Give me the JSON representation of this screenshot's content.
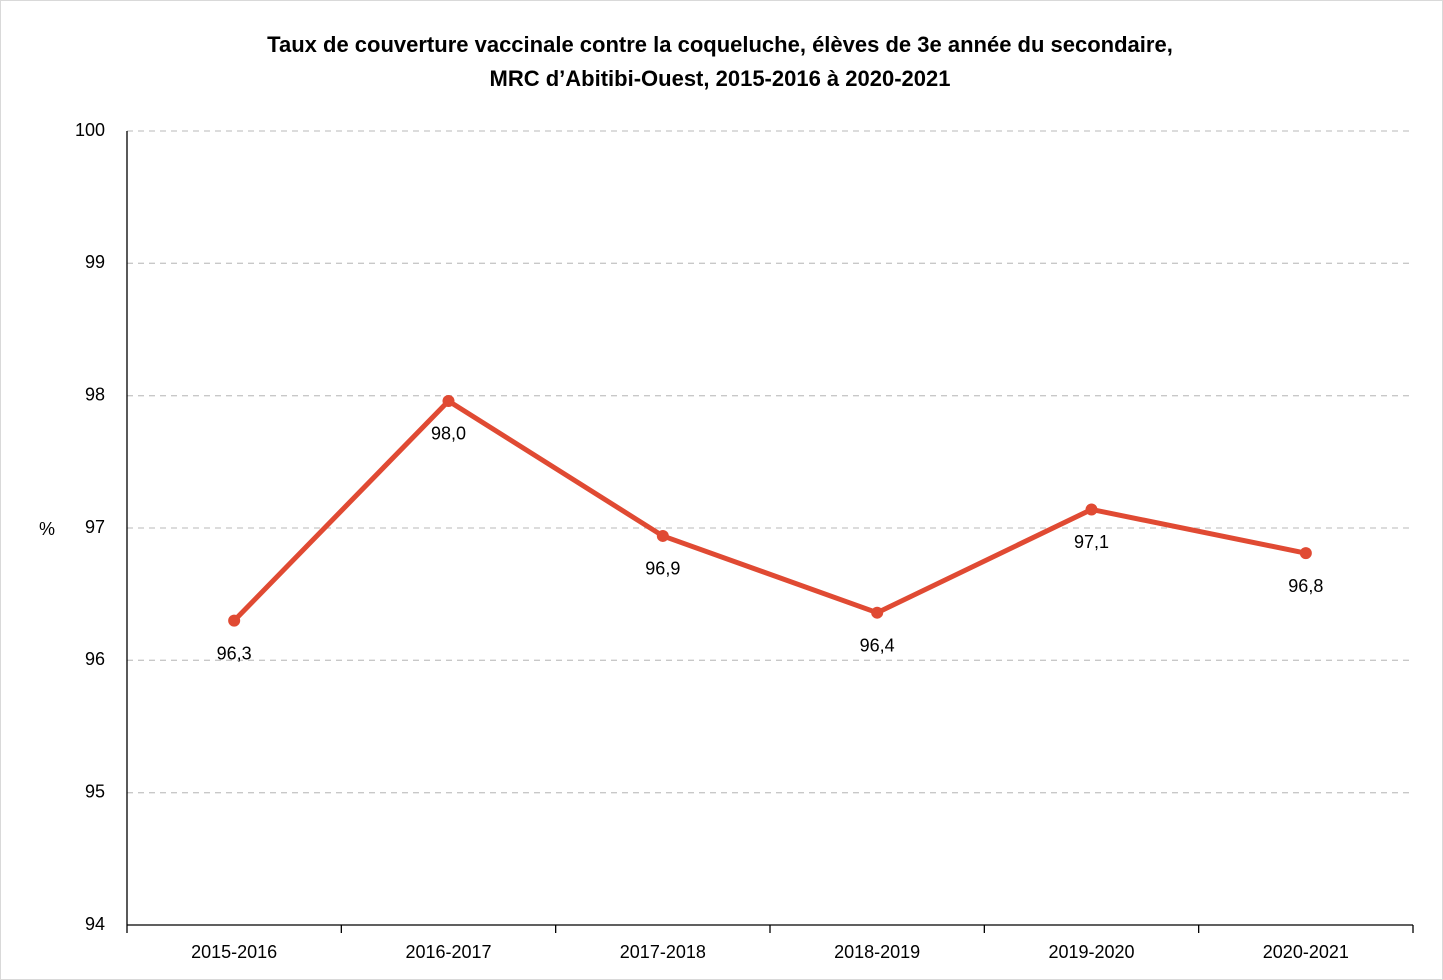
{
  "chart_data": {
    "type": "line",
    "title": [
      "Taux de couverture vaccinale contre la coqueluche, élèves de 3e année du secondaire,",
      "MRC d’Abitibi-Ouest, 2015-2016 à 2020-2021"
    ],
    "y_label": "%",
    "categories": [
      "2015-2016",
      "2016-2017",
      "2017-2018",
      "2018-2019",
      "2019-2020",
      "2020-2021"
    ],
    "series": [
      {
        "name": "Taux de couverture",
        "color": "#e04a33",
        "values": [
          96.3,
          97.96,
          96.94,
          96.36,
          97.14,
          96.81
        ],
        "value_labels": [
          "96,3",
          "98,0",
          "96,9",
          "96,4",
          "97,1",
          "96,8"
        ]
      }
    ],
    "ylim": [
      94,
      100
    ],
    "yticks": [
      94,
      95,
      96,
      97,
      98,
      99,
      100
    ],
    "grid": true
  }
}
